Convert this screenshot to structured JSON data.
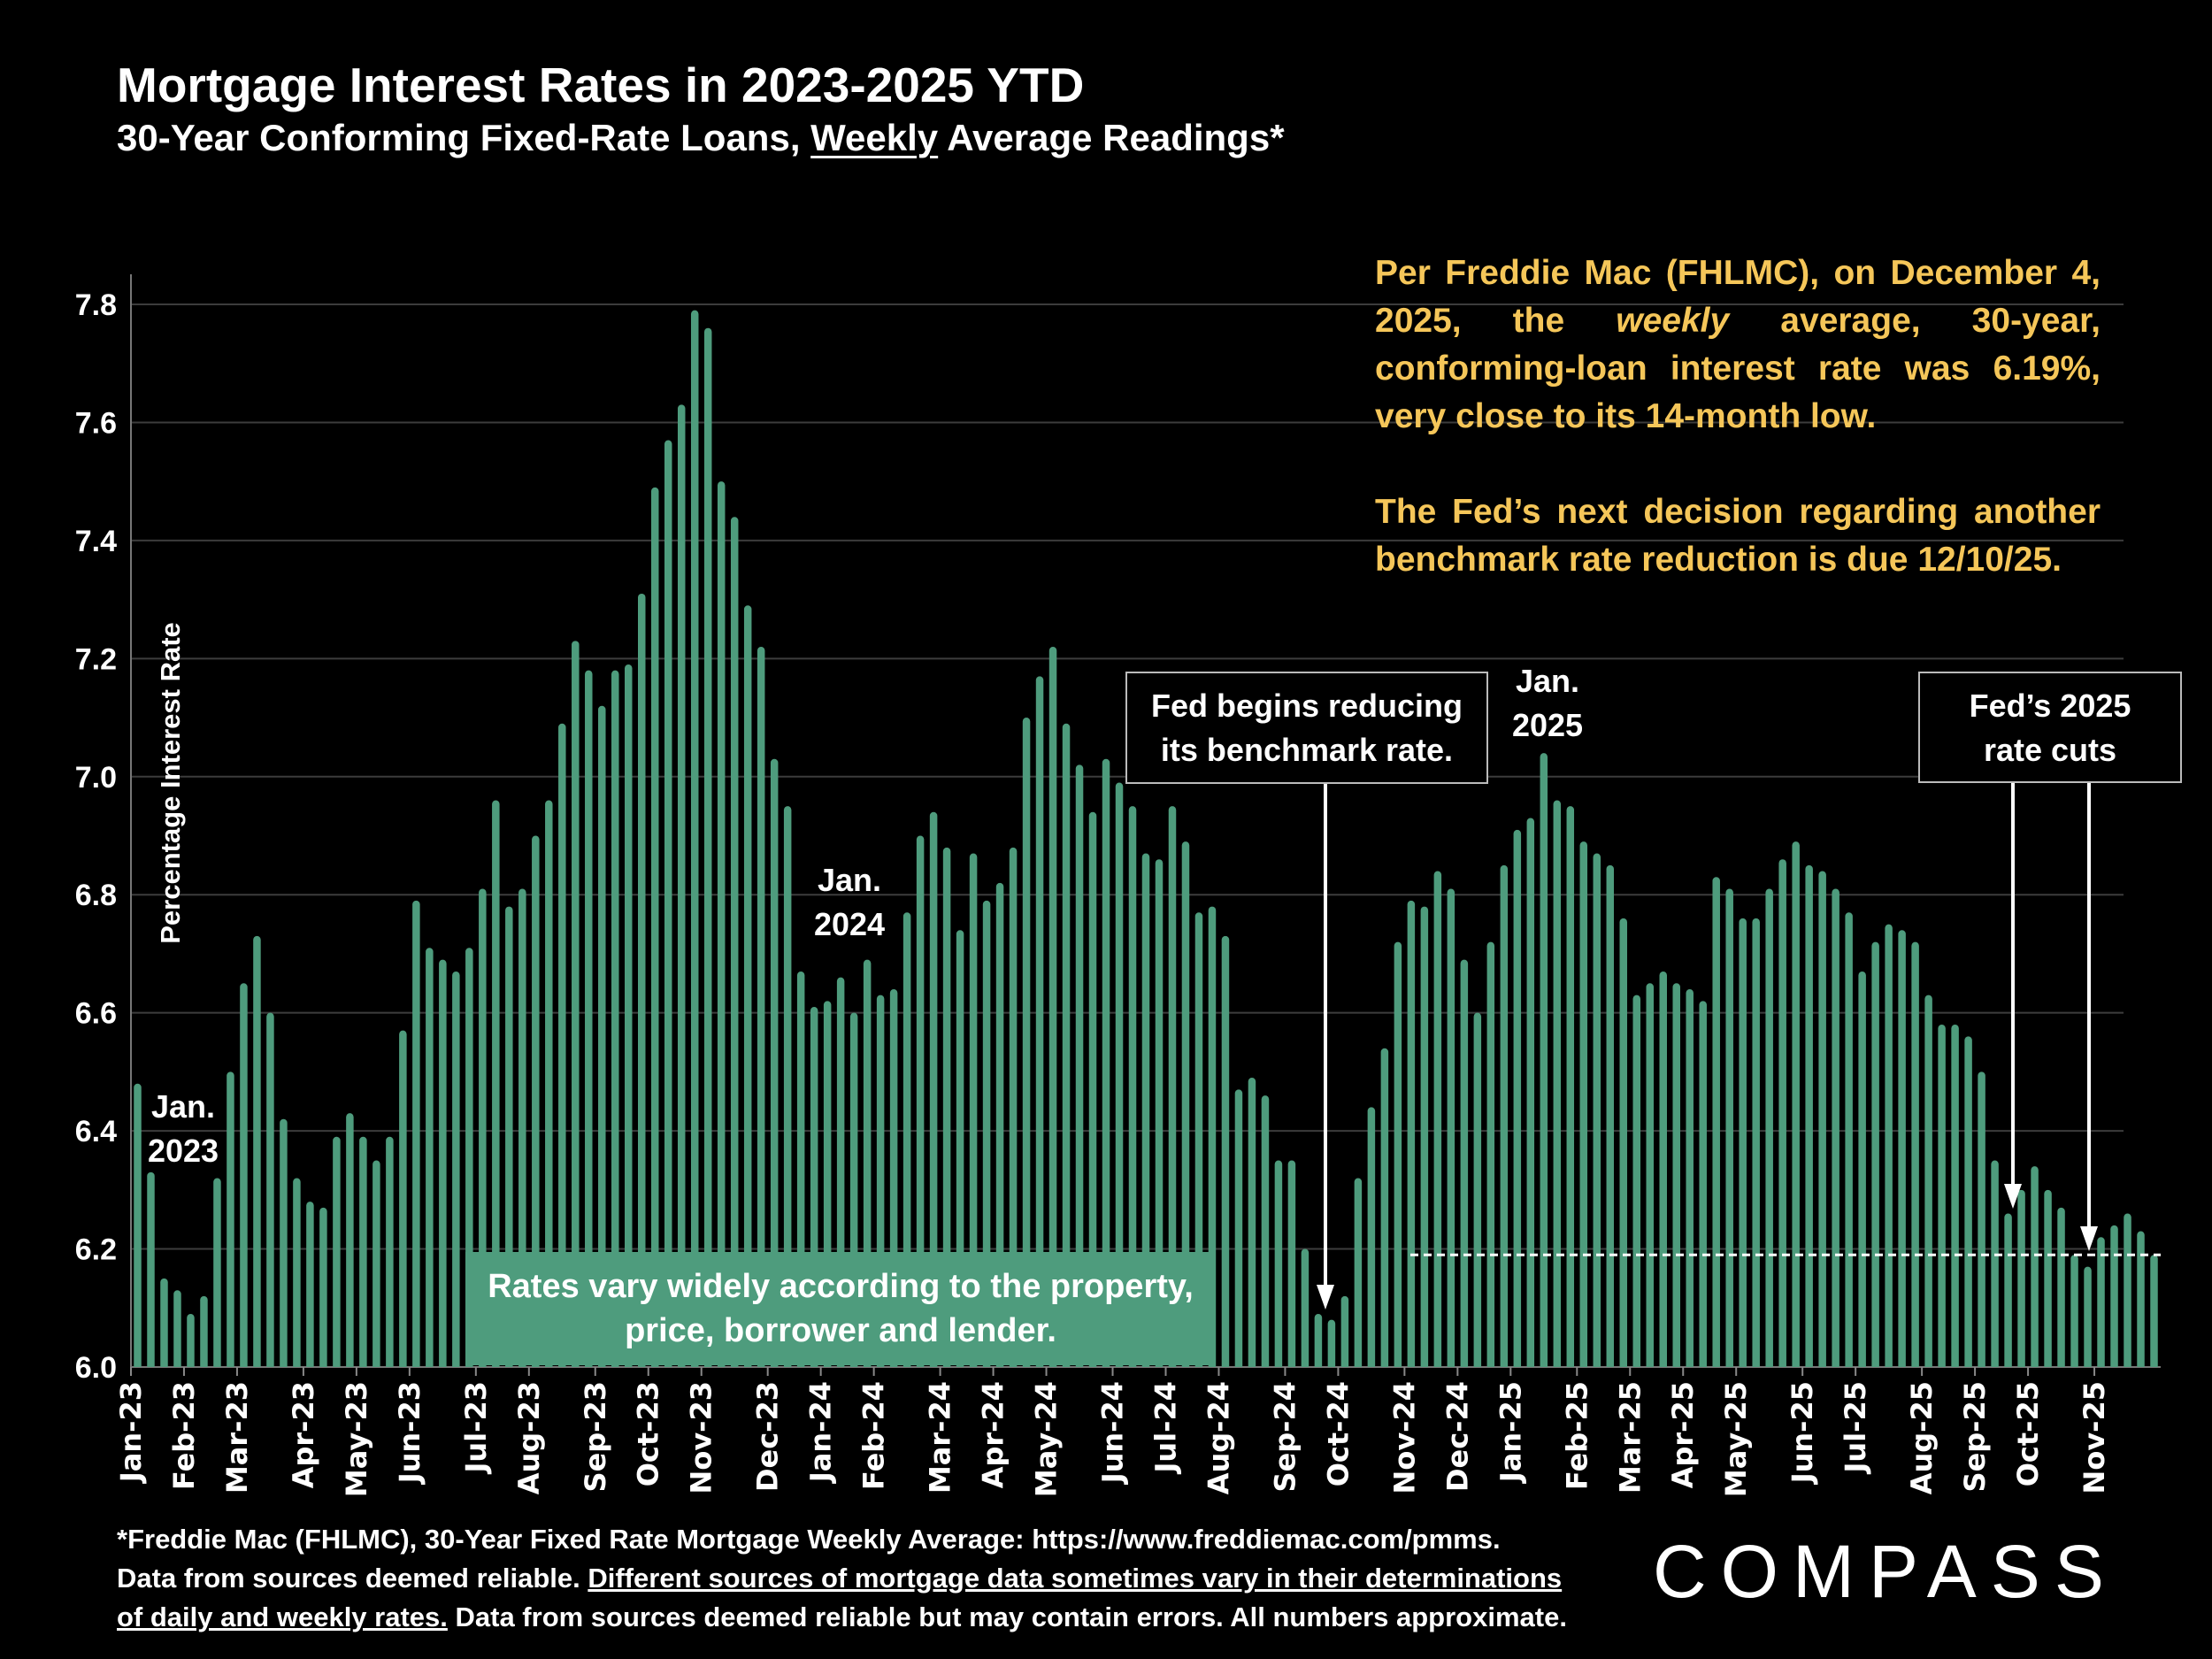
{
  "title": "Mortgage Interest Rates in 2023-2025 YTD",
  "subtitle": {
    "before": "30-Year Conforming Fixed-Rate Loans, ",
    "underlined": "Weekly",
    "after": " Average Readings*"
  },
  "note": {
    "p1_a": "Per Freddie Mac (FHLMC), on December 4, 2025, the ",
    "p1_em": "weekly",
    "p1_b": " average, 30-year, conforming-loan interest rate was 6.19%, very close to its 14-month low.",
    "p2": "The Fed’s next decision regarding another benchmark rate reduction is due 12/10/25."
  },
  "annotations": {
    "jan2023": [
      "Jan.",
      "2023"
    ],
    "jan2024": [
      "Jan.",
      "2024"
    ],
    "jan2025": [
      "Jan.",
      "2025"
    ],
    "fed_begins": [
      "Fed begins reducing",
      "its benchmark rate."
    ],
    "fed_2025": [
      "Fed’s 2025",
      "rate cuts"
    ],
    "rates_vary": [
      "Rates vary widely according to the property,",
      "price, borrower and lender."
    ]
  },
  "footer": {
    "line1": "*Freddie Mac (FHLMC), 30-Year Fixed Rate Mortgage Weekly Average:  https://www.freddiemac.com/pmms.",
    "line2_a": "Data from sources deemed reliable. ",
    "line2_u": "Different sources of mortgage data sometimes vary in their determinations",
    "line3_u": "of daily and weekly rates.",
    "line3_b": " Data from sources deemed reliable but may contain errors. All numbers approximate."
  },
  "logo": "COMPASS",
  "colors": {
    "bar": "#4e9c7d",
    "note": "#f5c659",
    "grid": "#3c3c3c",
    "reference_line": "#ffffff"
  },
  "chart_data": {
    "type": "bar",
    "title": "Mortgage Interest Rates in 2023-2025 YTD",
    "ylabel": "Percentage Interest  Rate",
    "ylim": [
      6.0,
      7.8
    ],
    "yticks": [
      "6.0",
      "6.2",
      "6.4",
      "6.6",
      "6.8",
      "7.0",
      "7.2",
      "7.4",
      "7.6",
      "7.8"
    ],
    "grid": true,
    "reference_line": {
      "value": 6.19,
      "style": "dashed"
    },
    "xtick_labels": [
      "Jan-23",
      "Feb-23",
      "Mar-23",
      "Apr-23",
      "May-23",
      "Jun-23",
      "Jul-23",
      "Aug-23",
      "Sep-23",
      "Oct-23",
      "Nov-23",
      "Dec-23",
      "Jan-24",
      "Feb-24",
      "Mar-24",
      "Apr-24",
      "May-24",
      "Jun-24",
      "Jul-24",
      "Aug-24",
      "Sep-24",
      "Oct-24",
      "Nov-24",
      "Dec-24",
      "Jan-25",
      "Feb-25",
      "Mar-25",
      "Apr-25",
      "May-25",
      "Jun-25",
      "Jul-25",
      "Aug-25",
      "Sep-25",
      "Oct-25",
      "Nov-25"
    ],
    "dates": [
      "2023-01-05",
      "2023-01-12",
      "2023-01-19",
      "2023-01-26",
      "2023-02-02",
      "2023-02-09",
      "2023-02-16",
      "2023-02-23",
      "2023-03-02",
      "2023-03-09",
      "2023-03-16",
      "2023-03-23",
      "2023-03-30",
      "2023-04-06",
      "2023-04-13",
      "2023-04-20",
      "2023-04-27",
      "2023-05-04",
      "2023-05-11",
      "2023-05-18",
      "2023-05-25",
      "2023-06-01",
      "2023-06-08",
      "2023-06-15",
      "2023-06-22",
      "2023-06-29",
      "2023-07-06",
      "2023-07-13",
      "2023-07-20",
      "2023-07-27",
      "2023-08-03",
      "2023-08-10",
      "2023-08-17",
      "2023-08-24",
      "2023-08-31",
      "2023-09-07",
      "2023-09-14",
      "2023-09-21",
      "2023-09-28",
      "2023-10-05",
      "2023-10-12",
      "2023-10-19",
      "2023-10-26",
      "2023-11-02",
      "2023-11-09",
      "2023-11-16",
      "2023-11-22",
      "2023-11-30",
      "2023-12-07",
      "2023-12-14",
      "2023-12-21",
      "2023-12-28",
      "2024-01-04",
      "2024-01-11",
      "2024-01-18",
      "2024-01-25",
      "2024-02-01",
      "2024-02-08",
      "2024-02-15",
      "2024-02-22",
      "2024-02-29",
      "2024-03-07",
      "2024-03-14",
      "2024-03-21",
      "2024-03-28",
      "2024-04-04",
      "2024-04-11",
      "2024-04-18",
      "2024-04-25",
      "2024-05-02",
      "2024-05-09",
      "2024-05-16",
      "2024-05-23",
      "2024-05-30",
      "2024-06-06",
      "2024-06-13",
      "2024-06-20",
      "2024-06-27",
      "2024-07-03",
      "2024-07-11",
      "2024-07-18",
      "2024-07-25",
      "2024-08-01",
      "2024-08-08",
      "2024-08-15",
      "2024-08-22",
      "2024-08-29",
      "2024-09-05",
      "2024-09-12",
      "2024-09-19",
      "2024-09-26",
      "2024-10-03",
      "2024-10-10",
      "2024-10-17",
      "2024-10-24",
      "2024-10-31",
      "2024-11-07",
      "2024-11-14",
      "2024-11-21",
      "2024-11-27",
      "2024-12-05",
      "2024-12-12",
      "2024-12-19",
      "2024-12-26",
      "2025-01-02",
      "2025-01-09",
      "2025-01-16",
      "2025-01-23",
      "2025-01-30",
      "2025-02-06",
      "2025-02-13",
      "2025-02-20",
      "2025-02-27",
      "2025-03-06",
      "2025-03-13",
      "2025-03-20",
      "2025-03-27",
      "2025-04-03",
      "2025-04-10",
      "2025-04-17",
      "2025-04-24",
      "2025-05-01",
      "2025-05-08",
      "2025-05-15",
      "2025-05-22",
      "2025-05-29",
      "2025-06-05",
      "2025-06-12",
      "2025-06-18",
      "2025-06-26",
      "2025-07-03",
      "2025-07-10",
      "2025-07-17",
      "2025-07-24",
      "2025-07-31",
      "2025-08-07",
      "2025-08-14",
      "2025-08-21",
      "2025-08-28",
      "2025-09-04",
      "2025-09-11",
      "2025-09-18",
      "2025-09-25",
      "2025-10-02",
      "2025-10-09",
      "2025-10-16",
      "2025-10-23",
      "2025-10-30",
      "2025-11-06",
      "2025-11-13",
      "2025-11-20",
      "2025-11-26",
      "2025-12-04"
    ],
    "values": [
      6.48,
      6.33,
      6.15,
      6.13,
      6.09,
      6.12,
      6.32,
      6.5,
      6.65,
      6.73,
      6.6,
      6.42,
      6.32,
      6.28,
      6.27,
      6.39,
      6.43,
      6.39,
      6.35,
      6.39,
      6.57,
      6.79,
      6.71,
      6.69,
      6.67,
      6.71,
      6.81,
      6.96,
      6.78,
      6.81,
      6.9,
      6.96,
      7.09,
      7.23,
      7.18,
      7.12,
      7.18,
      7.19,
      7.31,
      7.49,
      7.57,
      7.63,
      7.79,
      7.76,
      7.5,
      7.44,
      7.29,
      7.22,
      7.03,
      6.95,
      6.67,
      6.61,
      6.62,
      6.66,
      6.6,
      6.69,
      6.63,
      6.64,
      6.77,
      6.9,
      6.94,
      6.88,
      6.74,
      6.87,
      6.79,
      6.82,
      6.88,
      7.1,
      7.17,
      7.22,
      7.09,
      7.02,
      6.94,
      7.03,
      6.99,
      6.95,
      6.87,
      6.86,
      6.95,
      6.89,
      6.77,
      6.78,
      6.73,
      6.47,
      6.49,
      6.46,
      6.35,
      6.35,
      6.2,
      6.09,
      6.08,
      6.12,
      6.32,
      6.44,
      6.54,
      6.72,
      6.79,
      6.78,
      6.84,
      6.81,
      6.69,
      6.6,
      6.72,
      6.85,
      6.91,
      6.93,
      7.04,
      6.96,
      6.95,
      6.89,
      6.87,
      6.85,
      6.76,
      6.63,
      6.65,
      6.67,
      6.65,
      6.64,
      6.62,
      6.83,
      6.81,
      6.76,
      6.76,
      6.81,
      6.86,
      6.89,
      6.85,
      6.84,
      6.81,
      6.77,
      6.67,
      6.72,
      6.75,
      6.74,
      6.72,
      6.63,
      6.58,
      6.58,
      6.56,
      6.5,
      6.35,
      6.26,
      6.3,
      6.34,
      6.3,
      6.27,
      6.19,
      6.17,
      6.22,
      6.24,
      6.26,
      6.23,
      6.19
    ]
  }
}
